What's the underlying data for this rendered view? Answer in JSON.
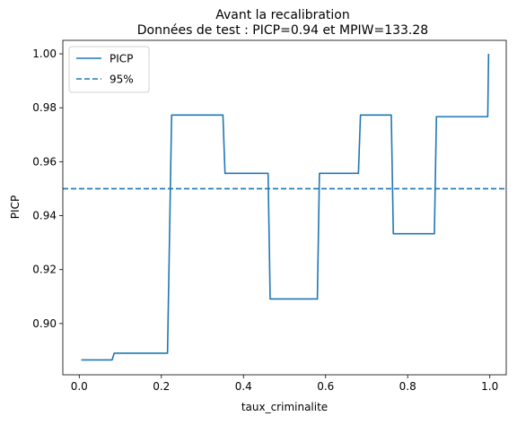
{
  "chart_data": {
    "type": "line",
    "title": "Avant la recalibration",
    "subtitle": "Données de test : PICP=0.94 et MPIW=133.28",
    "xlabel": "taux_criminalite",
    "ylabel": "PICP",
    "xlim": [
      -0.04,
      1.04
    ],
    "ylim": [
      0.881,
      1.005
    ],
    "x_ticks": [
      0.0,
      0.2,
      0.4,
      0.6,
      0.8,
      1.0
    ],
    "x_tick_labels": [
      "0.0",
      "0.2",
      "0.4",
      "0.6",
      "0.8",
      "1.0"
    ],
    "y_ticks": [
      0.9,
      0.92,
      0.94,
      0.96,
      0.98,
      1.0
    ],
    "y_tick_labels": [
      "0.90",
      "0.92",
      "0.94",
      "0.96",
      "0.98",
      "1.00"
    ],
    "grid": false,
    "legend_position": "top-left",
    "series": [
      {
        "name": "PICP",
        "style": "solid",
        "color": "#1f77b4",
        "points": [
          [
            0.005,
            0.8865
          ],
          [
            0.08,
            0.8865
          ],
          [
            0.085,
            0.889
          ],
          [
            0.215,
            0.889
          ],
          [
            0.225,
            0.9773
          ],
          [
            0.35,
            0.9773
          ],
          [
            0.355,
            0.9557
          ],
          [
            0.46,
            0.9557
          ],
          [
            0.465,
            0.9091
          ],
          [
            0.58,
            0.9091
          ],
          [
            0.585,
            0.9557
          ],
          [
            0.68,
            0.9557
          ],
          [
            0.685,
            0.9773
          ],
          [
            0.76,
            0.9773
          ],
          [
            0.765,
            0.9333
          ],
          [
            0.865,
            0.9333
          ],
          [
            0.87,
            0.9767
          ],
          [
            0.995,
            0.9767
          ],
          [
            0.997,
            1.0
          ]
        ]
      },
      {
        "name": "95%",
        "style": "dashed",
        "color": "#1f77b4",
        "value": 0.95
      }
    ]
  }
}
